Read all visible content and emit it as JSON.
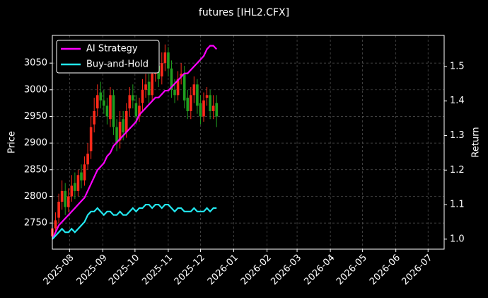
{
  "chart_data": {
    "type": "candlestick_returns",
    "title": "futures [IHL2.CFX]",
    "y_label": "Price",
    "y2_label": "Return",
    "x": [
      "2025-07-16",
      "2025-07-19",
      "2025-07-22",
      "2025-07-25",
      "2025-07-28",
      "2025-07-31",
      "2025-08-03",
      "2025-08-06",
      "2025-08-09",
      "2025-08-12",
      "2025-08-15",
      "2025-08-18",
      "2025-08-21",
      "2025-08-24",
      "2025-08-27",
      "2025-08-30",
      "2025-09-02",
      "2025-09-05",
      "2025-09-08",
      "2025-09-11",
      "2025-09-14",
      "2025-09-17",
      "2025-09-20",
      "2025-09-23",
      "2025-09-26",
      "2025-09-29",
      "2025-10-02",
      "2025-10-05",
      "2025-10-08",
      "2025-10-11",
      "2025-10-14",
      "2025-10-17",
      "2025-10-20",
      "2025-10-23",
      "2025-10-26",
      "2025-10-29",
      "2025-11-01",
      "2025-11-04",
      "2025-11-07",
      "2025-11-10",
      "2025-11-13",
      "2025-11-16",
      "2025-11-19",
      "2025-11-22",
      "2025-11-25",
      "2025-11-28",
      "2025-12-01",
      "2025-12-04",
      "2025-12-07",
      "2025-12-10",
      "2025-12-13",
      "2025-12-16"
    ],
    "open": [
      2725,
      2740,
      2760,
      2790,
      2810,
      2780,
      2800,
      2825,
      2810,
      2845,
      2830,
      2860,
      2885,
      2935,
      2965,
      2995,
      2980,
      2970,
      2945,
      2990,
      2930,
      2905,
      2945,
      2920,
      2965,
      2990,
      2975,
      2950,
      2975,
      3000,
      3015,
      2990,
      3030,
      3045,
      3025,
      3050,
      3070,
      3040,
      3000,
      2990,
      3025,
      3030,
      2985,
      2960,
      2990,
      3010,
      2975,
      2950,
      2985,
      2990,
      2960,
      2975
    ],
    "high": [
      2760,
      2770,
      2805,
      2830,
      2825,
      2815,
      2840,
      2845,
      2850,
      2860,
      2875,
      2900,
      2950,
      2985,
      3010,
      3015,
      3000,
      2985,
      3005,
      3000,
      2945,
      2960,
      2960,
      2975,
      3005,
      3010,
      2990,
      2985,
      3020,
      3030,
      3030,
      3045,
      3060,
      3065,
      3070,
      3085,
      3080,
      3055,
      3020,
      3035,
      3050,
      3045,
      3000,
      3005,
      3025,
      3020,
      2990,
      2995,
      3005,
      3000,
      2990,
      2990
    ],
    "low": [
      2715,
      2730,
      2750,
      2775,
      2765,
      2770,
      2790,
      2795,
      2800,
      2815,
      2820,
      2850,
      2870,
      2920,
      2950,
      2965,
      2955,
      2935,
      2930,
      2915,
      2885,
      2890,
      2905,
      2910,
      2950,
      2965,
      2935,
      2940,
      2960,
      2985,
      2975,
      2980,
      3015,
      3005,
      3010,
      3035,
      3025,
      2985,
      2975,
      2980,
      3010,
      2965,
      2945,
      2945,
      2975,
      2955,
      2935,
      2940,
      2970,
      2945,
      2945,
      2930
    ],
    "close": [
      2740,
      2755,
      2790,
      2810,
      2780,
      2800,
      2820,
      2810,
      2840,
      2830,
      2860,
      2880,
      2930,
      2960,
      2990,
      2980,
      2970,
      2950,
      2990,
      2930,
      2900,
      2940,
      2920,
      2960,
      2990,
      2980,
      2950,
      2970,
      3000,
      3010,
      2990,
      3030,
      3040,
      3020,
      3050,
      3070,
      3040,
      3000,
      2990,
      3020,
      3030,
      2980,
      2960,
      2990,
      3010,
      2970,
      2950,
      2980,
      2990,
      2960,
      2970,
      2950
    ],
    "up_color": "#ff2a1a",
    "down_color": "#1f9e1f",
    "series": [
      {
        "name": "AI Strategy",
        "color": "#ff00ff",
        "axis": "y2",
        "values": [
          1.0,
          1.02,
          1.04,
          1.05,
          1.06,
          1.07,
          1.08,
          1.09,
          1.1,
          1.11,
          1.12,
          1.14,
          1.16,
          1.18,
          1.2,
          1.21,
          1.22,
          1.24,
          1.25,
          1.27,
          1.28,
          1.29,
          1.3,
          1.31,
          1.32,
          1.33,
          1.34,
          1.36,
          1.37,
          1.38,
          1.39,
          1.4,
          1.41,
          1.41,
          1.42,
          1.43,
          1.43,
          1.44,
          1.45,
          1.46,
          1.47,
          1.48,
          1.48,
          1.49,
          1.5,
          1.51,
          1.52,
          1.53,
          1.55,
          1.56,
          1.56,
          1.55
        ]
      },
      {
        "name": "Buy-and-Hold",
        "color": "#22e8f0",
        "axis": "y2",
        "values": [
          1.0,
          1.01,
          1.02,
          1.03,
          1.02,
          1.02,
          1.03,
          1.02,
          1.03,
          1.04,
          1.05,
          1.07,
          1.08,
          1.08,
          1.09,
          1.08,
          1.07,
          1.08,
          1.08,
          1.07,
          1.07,
          1.08,
          1.07,
          1.07,
          1.08,
          1.09,
          1.08,
          1.09,
          1.09,
          1.1,
          1.1,
          1.09,
          1.1,
          1.1,
          1.09,
          1.1,
          1.1,
          1.09,
          1.08,
          1.09,
          1.09,
          1.08,
          1.08,
          1.08,
          1.09,
          1.08,
          1.08,
          1.08,
          1.09,
          1.08,
          1.09,
          1.09
        ]
      }
    ],
    "xlim": [
      "2025-07-16",
      "2026-07-16"
    ],
    "xticks": [
      "2025-08",
      "2025-09",
      "2025-10",
      "2025-11",
      "2025-12",
      "2026-01",
      "2026-02",
      "2026-03",
      "2026-04",
      "2026-05",
      "2026-06",
      "2026-07"
    ],
    "ylim": [
      2701,
      3102
    ],
    "yticks": [
      2750,
      2800,
      2850,
      2900,
      2950,
      3000,
      3050
    ],
    "y2lim": [
      0.971,
      1.59
    ],
    "y2ticks": [
      {
        "value": 1,
        "label": "1.0"
      },
      1.1,
      1.2,
      1.3,
      1.4,
      1.5
    ],
    "grid": true,
    "legend": "upper left"
  }
}
